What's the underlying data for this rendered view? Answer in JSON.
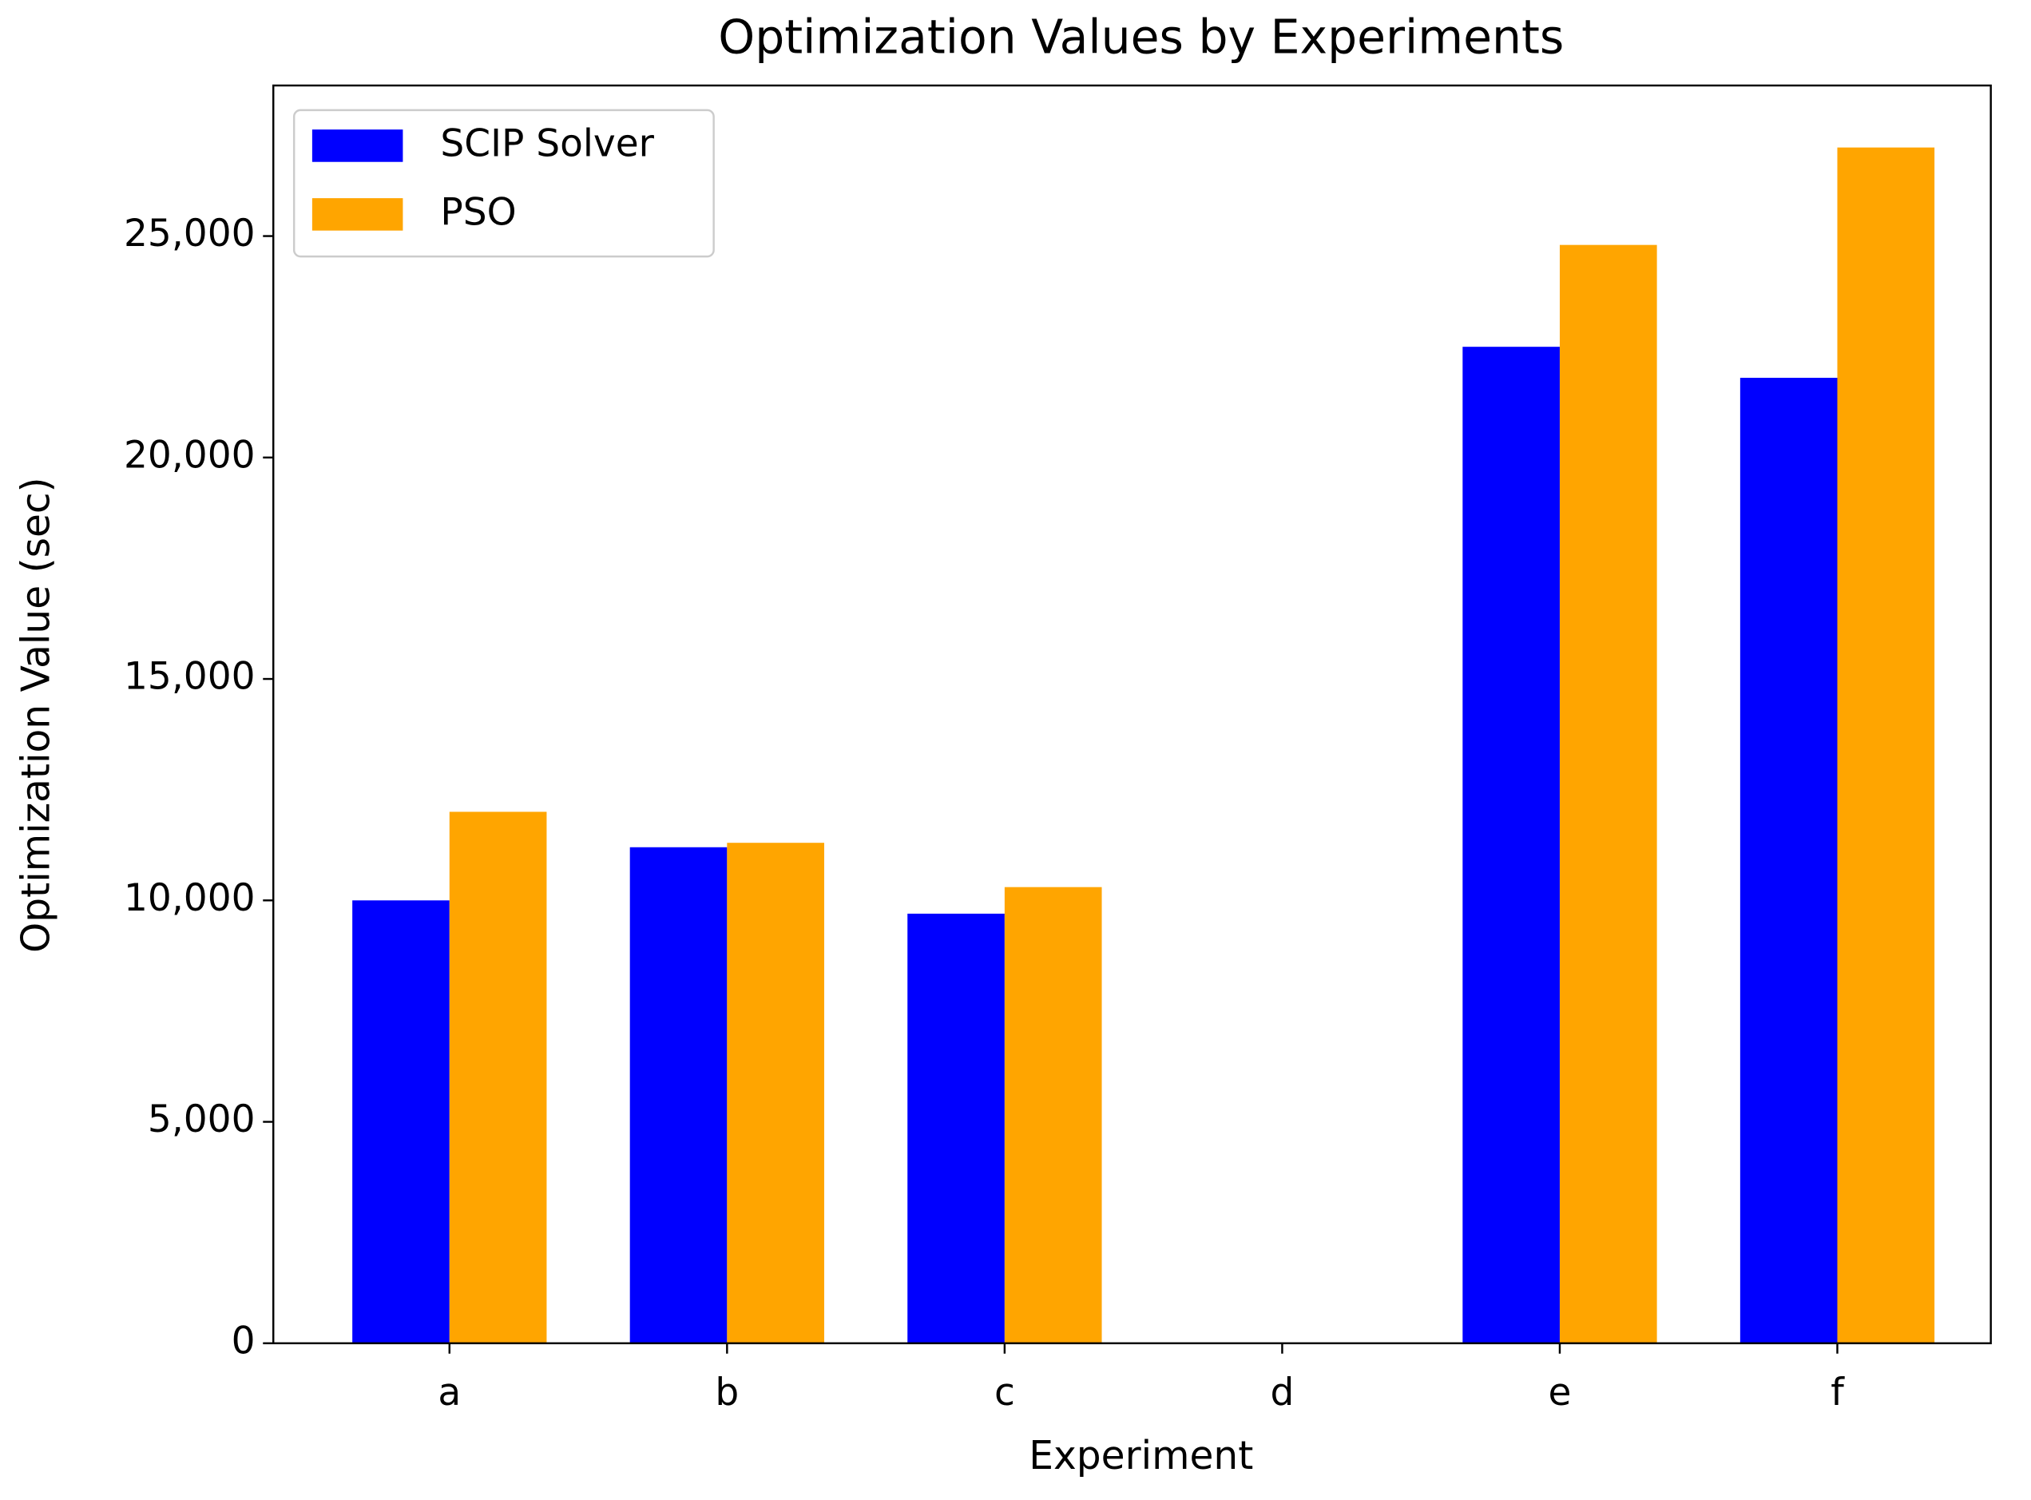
{
  "chart_data": {
    "type": "bar",
    "title": "Optimization Values by Experiments",
    "x_label": "Experiment",
    "y_label": "Optimization Value (sec)",
    "categories": [
      "a",
      "b",
      "c",
      "d",
      "e",
      "f"
    ],
    "series": [
      {
        "name": "SCIP Solver",
        "color": "#0000ff",
        "values": [
          10000,
          11200,
          9700,
          null,
          22500,
          21800
        ]
      },
      {
        "name": "PSO",
        "color": "#ffa500",
        "values": [
          12000,
          11300,
          10300,
          null,
          24800,
          27000
        ]
      }
    ],
    "ylim": [
      0,
      28400
    ],
    "yticks": [
      0,
      {
        "value": 5000,
        "label": "5,000"
      },
      {
        "value": 10000,
        "label": "10,000"
      },
      {
        "value": 15000,
        "label": "15,000"
      },
      {
        "value": 20000,
        "label": "20,000"
      },
      {
        "value": 25000,
        "label": "25,000"
      }
    ],
    "grid": false,
    "legend_position": "upper left"
  }
}
